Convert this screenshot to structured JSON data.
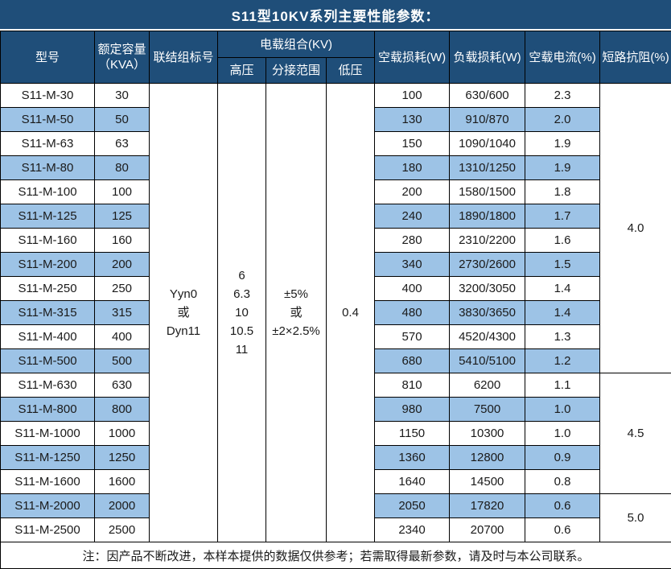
{
  "title": "S11型10KV系列主要性能参数：",
  "colors": {
    "header_bg": "#1F4E79",
    "stripe_bg": "#9DC3E6",
    "row_bg": "#FFFFFF",
    "border": "#000000",
    "header_text": "#FFFFFF"
  },
  "header": {
    "model": "型号",
    "capacity": "额定容量\n（KVA）",
    "connection": "联结组标号",
    "voltage_combo": "电载组合(KV)",
    "hv": "高压",
    "tap_range": "分接范围",
    "lv": "低压",
    "no_load_loss": "空载损耗(W)",
    "load_loss": "负载损耗(W)",
    "no_load_current": "空载电流(%)",
    "short_circuit_impedance": "短路抗阻(%)"
  },
  "merged": {
    "connection": "Yyn0\n或\nDyn11",
    "hv": "6\n6.3\n10\n10.5\n11",
    "tap_range": "±5%\n或\n±2×2.5%",
    "lv": "0.4"
  },
  "rows": [
    {
      "model": "S11-M-30",
      "capacity": "30",
      "no_load_loss": "100",
      "load_loss": "630/600",
      "no_load_current": "2.3"
    },
    {
      "model": "S11-M-50",
      "capacity": "50",
      "no_load_loss": "130",
      "load_loss": "910/870",
      "no_load_current": "2.0"
    },
    {
      "model": "S11-M-63",
      "capacity": "63",
      "no_load_loss": "150",
      "load_loss": "1090/1040",
      "no_load_current": "1.9"
    },
    {
      "model": "S11-M-80",
      "capacity": "80",
      "no_load_loss": "180",
      "load_loss": "1310/1250",
      "no_load_current": "1.9"
    },
    {
      "model": "S11-M-100",
      "capacity": "100",
      "no_load_loss": "200",
      "load_loss": "1580/1500",
      "no_load_current": "1.8"
    },
    {
      "model": "S11-M-125",
      "capacity": "125",
      "no_load_loss": "240",
      "load_loss": "1890/1800",
      "no_load_current": "1.7"
    },
    {
      "model": "S11-M-160",
      "capacity": "160",
      "no_load_loss": "280",
      "load_loss": "2310/2200",
      "no_load_current": "1.6"
    },
    {
      "model": "S11-M-200",
      "capacity": "200",
      "no_load_loss": "340",
      "load_loss": "2730/2600",
      "no_load_current": "1.5"
    },
    {
      "model": "S11-M-250",
      "capacity": "250",
      "no_load_loss": "400",
      "load_loss": "3200/3050",
      "no_load_current": "1.4"
    },
    {
      "model": "S11-M-315",
      "capacity": "315",
      "no_load_loss": "480",
      "load_loss": "3830/3650",
      "no_load_current": "1.4"
    },
    {
      "model": "S11-M-400",
      "capacity": "400",
      "no_load_loss": "570",
      "load_loss": "4520/4300",
      "no_load_current": "1.3"
    },
    {
      "model": "S11-M-500",
      "capacity": "500",
      "no_load_loss": "680",
      "load_loss": "5410/5100",
      "no_load_current": "1.2"
    },
    {
      "model": "S11-M-630",
      "capacity": "630",
      "no_load_loss": "810",
      "load_loss": "6200",
      "no_load_current": "1.1"
    },
    {
      "model": "S11-M-800",
      "capacity": "800",
      "no_load_loss": "980",
      "load_loss": "7500",
      "no_load_current": "1.0"
    },
    {
      "model": "S11-M-1000",
      "capacity": "1000",
      "no_load_loss": "1150",
      "load_loss": "10300",
      "no_load_current": "1.0"
    },
    {
      "model": "S11-M-1250",
      "capacity": "1250",
      "no_load_loss": "1360",
      "load_loss": "12800",
      "no_load_current": "0.9"
    },
    {
      "model": "S11-M-1600",
      "capacity": "1600",
      "no_load_loss": "1640",
      "load_loss": "14500",
      "no_load_current": "0.8"
    },
    {
      "model": "S11-M-2000",
      "capacity": "2000",
      "no_load_loss": "2050",
      "load_loss": "17820",
      "no_load_current": "0.6"
    },
    {
      "model": "S11-M-2500",
      "capacity": "2500",
      "no_load_loss": "2340",
      "load_loss": "20700",
      "no_load_current": "0.6"
    }
  ],
  "impedance_groups": [
    {
      "value": "4.0",
      "start": 0,
      "span": 12
    },
    {
      "value": "4.5",
      "start": 12,
      "span": 5
    },
    {
      "value": "5.0",
      "start": 17,
      "span": 2
    }
  ],
  "note": "注：因产品不断改进，本样本提供的数据仅供参考；若需取得最新参数，请及时与本公司联系。"
}
